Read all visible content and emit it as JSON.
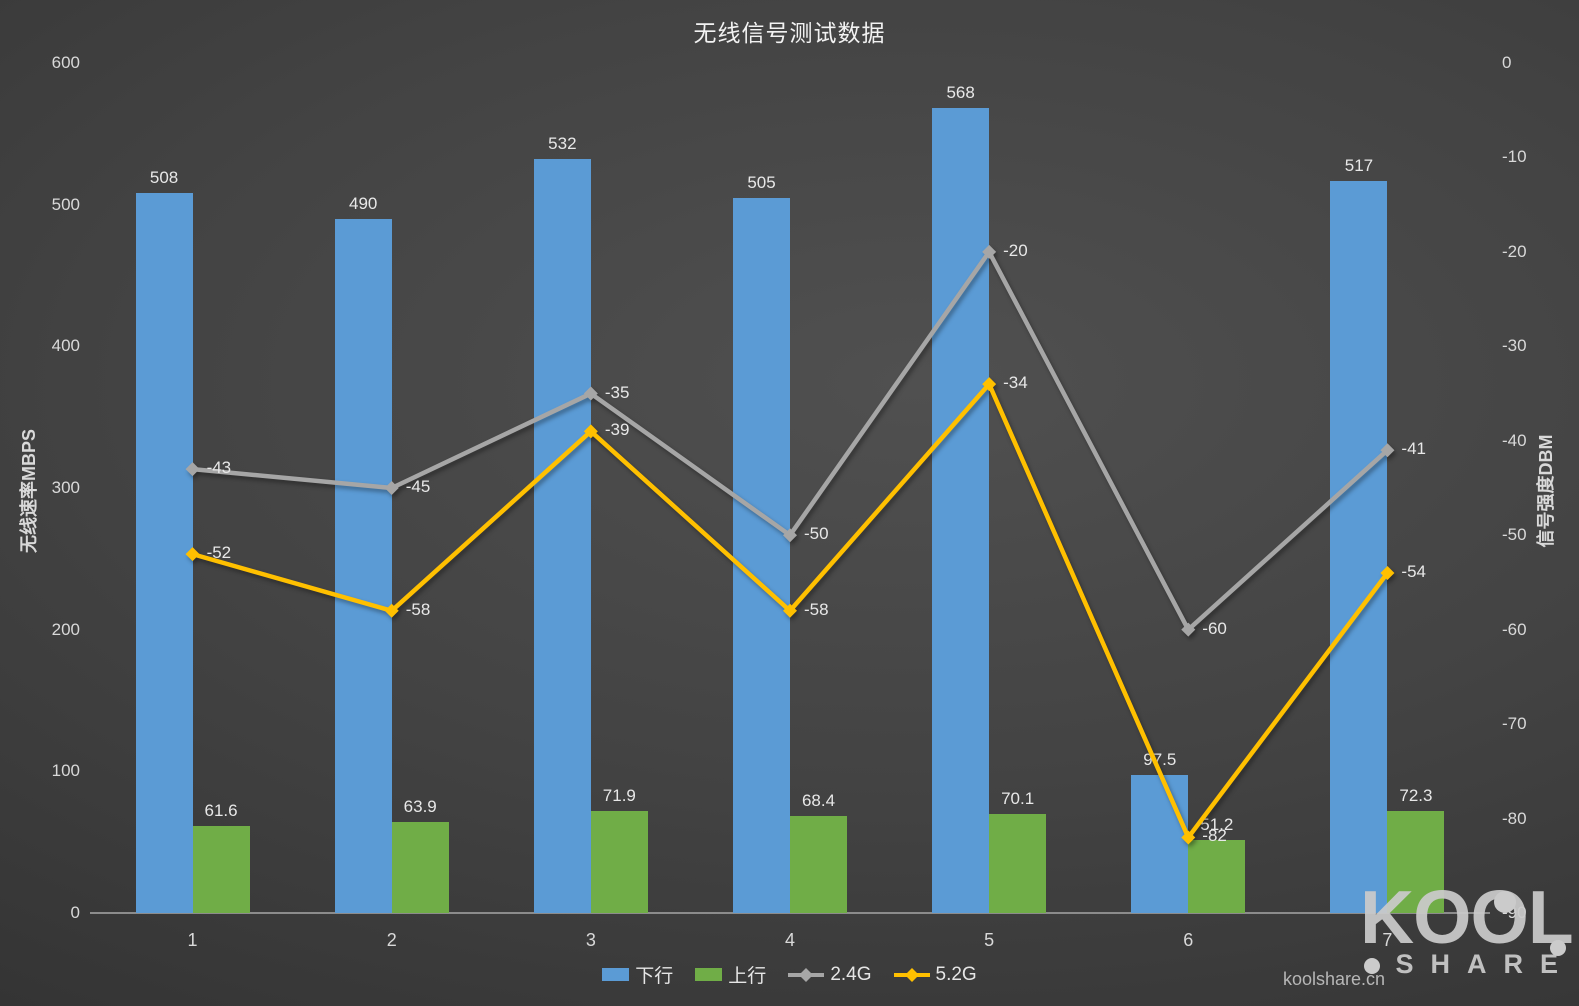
{
  "title": "无线信号测试数据",
  "chart_data": {
    "type": "combo (bar + line)",
    "title": "无线信号测试数据",
    "categories": [
      "1",
      "2",
      "3",
      "4",
      "5",
      "6",
      "7"
    ],
    "series": [
      {
        "name": "下行",
        "type": "bar",
        "axis": "left",
        "color": "#5b9bd5",
        "values": [
          508,
          490,
          532,
          505,
          568,
          97.5,
          517
        ]
      },
      {
        "name": "上行",
        "type": "bar",
        "axis": "left",
        "color": "#70ad47",
        "values": [
          61.6,
          63.9,
          71.9,
          68.4,
          70.1,
          51.2,
          72.3
        ]
      },
      {
        "name": "2.4G",
        "type": "line",
        "axis": "right",
        "color": "#a6a6a6",
        "values": [
          -43,
          -45,
          -35,
          -50,
          -20,
          -60,
          -41
        ]
      },
      {
        "name": "5.2G",
        "type": "line",
        "axis": "right",
        "color": "#ffc000",
        "values": [
          -52,
          -58,
          -39,
          -58,
          -34,
          -82,
          -54
        ]
      }
    ],
    "left_axis": {
      "label": "无线速率MBPS",
      "min": 0,
      "max": 600,
      "ticks": [
        600,
        500,
        400,
        300,
        200,
        100,
        0
      ]
    },
    "right_axis": {
      "label": "信号强度DBM",
      "min": -90,
      "max": 0,
      "ticks": [
        0,
        -10,
        -20,
        -30,
        -40,
        -50,
        -60,
        -70,
        -80,
        -90
      ]
    },
    "grid": false,
    "legend_position": "bottom",
    "data_labels": true
  },
  "watermark": {
    "site": "koolshare.cn",
    "logo_top": "KOOL",
    "logo_bottom": "SHARE"
  }
}
